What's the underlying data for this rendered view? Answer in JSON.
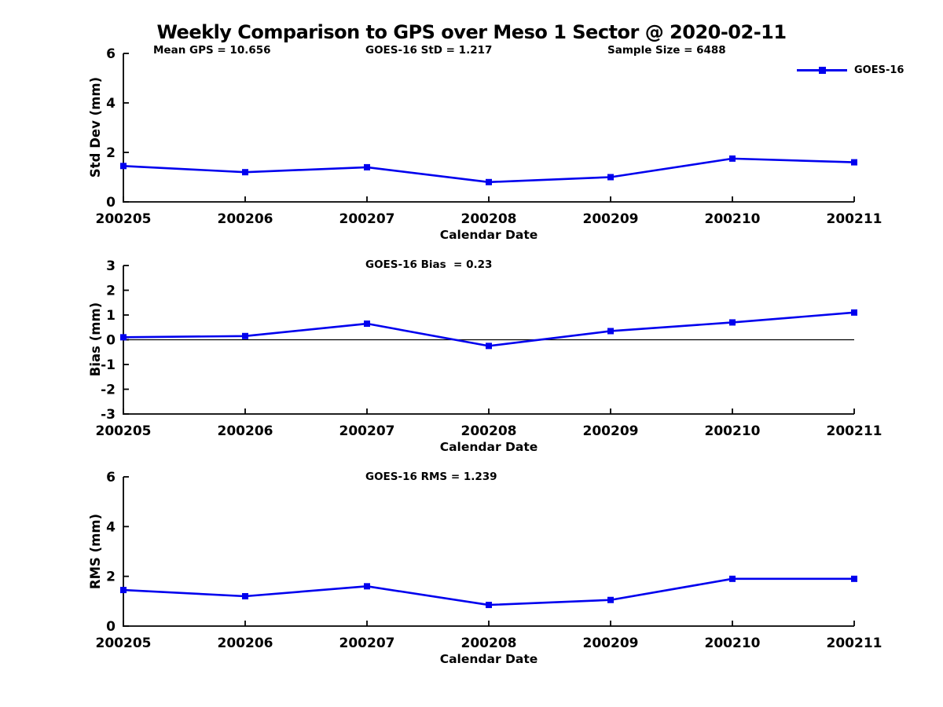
{
  "figure": {
    "title": "Weekly Comparison to GPS over Meso 1 Sector @ 2020-02-11",
    "annotations": {
      "mean_gps": "Mean GPS = 10.656",
      "std": "GOES-16 StD = 1.217",
      "sample_size": "Sample Size = 6488"
    },
    "legend": {
      "label": "GOES-16",
      "marker": "filled-square",
      "position": "top-right"
    }
  },
  "colors": {
    "series": "#0000EE",
    "axis": "#000000",
    "background": "#FFFFFF"
  },
  "chart_data": [
    {
      "type": "line",
      "title": "",
      "ylabel": "Std Dev (mm)",
      "xlabel": "Calendar Date",
      "categories": [
        "200205",
        "200206",
        "200207",
        "200208",
        "200209",
        "200210",
        "200211"
      ],
      "series": [
        {
          "name": "GOES-16",
          "values": [
            1.45,
            1.2,
            1.4,
            0.8,
            1.0,
            1.75,
            1.6
          ]
        }
      ],
      "ylim": [
        0,
        6
      ],
      "yticks": [
        0,
        2,
        4,
        6
      ],
      "zero_line": false,
      "grid": false,
      "legend_position": "top-right"
    },
    {
      "type": "line",
      "title": "GOES-16 Bias  = 0.23",
      "ylabel": "Bias (mm)",
      "xlabel": "Calendar Date",
      "categories": [
        "200205",
        "200206",
        "200207",
        "200208",
        "200209",
        "200210",
        "200211"
      ],
      "series": [
        {
          "name": "GOES-16",
          "values": [
            0.1,
            0.15,
            0.65,
            -0.25,
            0.35,
            0.7,
            1.1
          ]
        }
      ],
      "ylim": [
        -3,
        3
      ],
      "yticks": [
        -3,
        -2,
        -1,
        0,
        1,
        2,
        3
      ],
      "zero_line": true,
      "grid": false,
      "legend_position": "none"
    },
    {
      "type": "line",
      "title": "GOES-16 RMS = 1.239",
      "ylabel": "RMS (mm)",
      "xlabel": "Calendar Date",
      "categories": [
        "200205",
        "200206",
        "200207",
        "200208",
        "200209",
        "200210",
        "200211"
      ],
      "series": [
        {
          "name": "GOES-16",
          "values": [
            1.45,
            1.2,
            1.6,
            0.85,
            1.05,
            1.9,
            1.9
          ]
        }
      ],
      "ylim": [
        0,
        6
      ],
      "yticks": [
        0,
        2,
        4,
        6
      ],
      "zero_line": false,
      "grid": false,
      "legend_position": "none"
    }
  ]
}
